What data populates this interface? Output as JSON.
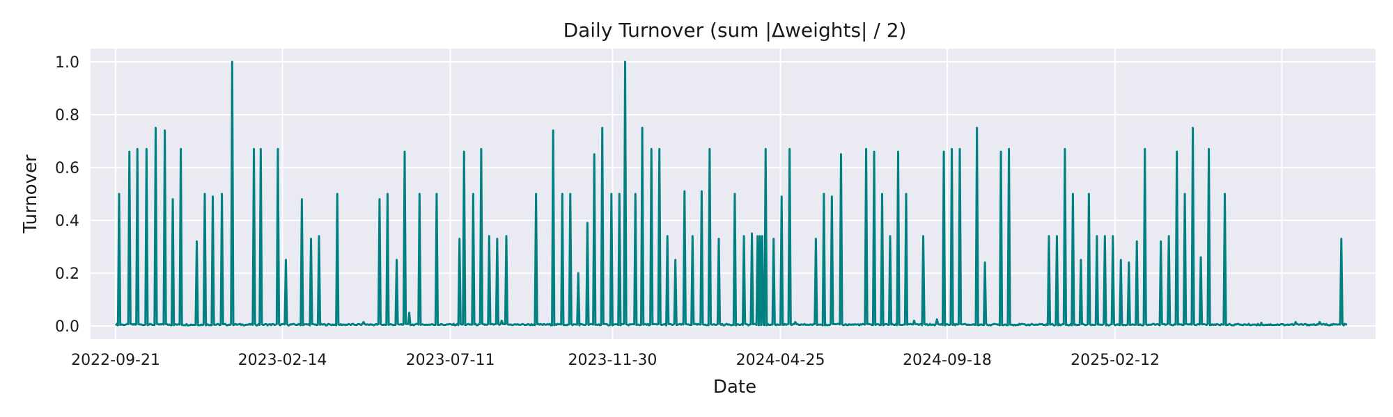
{
  "chart_data": {
    "type": "line",
    "title": "Daily Turnover (sum |Δweights| / 2)",
    "xlabel": "Date",
    "ylabel": "Turnover",
    "x_axis": "date",
    "xlim": [
      "2022-08-30",
      "2025-09-28"
    ],
    "ylim": [
      -0.05,
      1.05
    ],
    "x_ticks": [
      "2022-09-21",
      "2023-02-14",
      "2023-07-11",
      "2023-11-30",
      "2024-04-25",
      "2024-09-18",
      "2025-02-12"
    ],
    "y_ticks": [
      "0.0",
      "0.2",
      "0.4",
      "0.6",
      "0.8",
      "1.0"
    ],
    "grid": true,
    "legend": false,
    "colors": {
      "line": "#008080",
      "plot_bg": "#eaeaf2",
      "grid": "#ffffff"
    },
    "series": [
      {
        "baseline": 0.005,
        "date_start": "2022-09-21",
        "date_end": "2025-09-03",
        "spikes": [
          [
            "2022-09-24",
            0.5
          ],
          [
            "2022-10-03",
            0.66
          ],
          [
            "2022-10-10",
            0.67
          ],
          [
            "2022-10-18",
            0.67
          ],
          [
            "2022-10-26",
            0.75
          ],
          [
            "2022-11-03",
            0.74
          ],
          [
            "2022-11-10",
            0.48
          ],
          [
            "2022-11-17",
            0.67
          ],
          [
            "2022-12-01",
            0.32
          ],
          [
            "2022-12-08",
            0.5
          ],
          [
            "2022-12-15",
            0.49
          ],
          [
            "2022-12-23",
            0.5
          ],
          [
            "2023-01-01",
            1.0
          ],
          [
            "2023-01-20",
            0.67
          ],
          [
            "2023-01-26",
            0.67
          ],
          [
            "2023-02-10",
            0.67
          ],
          [
            "2023-02-17",
            0.25
          ],
          [
            "2023-03-03",
            0.48
          ],
          [
            "2023-03-11",
            0.33
          ],
          [
            "2023-03-18",
            0.34
          ],
          [
            "2023-04-03",
            0.5
          ],
          [
            "2023-05-10",
            0.48
          ],
          [
            "2023-05-17",
            0.5
          ],
          [
            "2023-05-25",
            0.25
          ],
          [
            "2023-06-01",
            0.66
          ],
          [
            "2023-06-14",
            0.5
          ],
          [
            "2023-06-29",
            0.5
          ],
          [
            "2023-07-19",
            0.33
          ],
          [
            "2023-07-23",
            0.66
          ],
          [
            "2023-07-31",
            0.5
          ],
          [
            "2023-08-07",
            0.67
          ],
          [
            "2023-08-14",
            0.34
          ],
          [
            "2023-08-21",
            0.33
          ],
          [
            "2023-08-29",
            0.34
          ],
          [
            "2023-09-24",
            0.5
          ],
          [
            "2023-10-09",
            0.74
          ],
          [
            "2023-10-17",
            0.5
          ],
          [
            "2023-10-24",
            0.5
          ],
          [
            "2023-10-31",
            0.2
          ],
          [
            "2023-11-08",
            0.39
          ],
          [
            "2023-11-14",
            0.65
          ],
          [
            "2023-11-21",
            0.75
          ],
          [
            "2023-11-29",
            0.5
          ],
          [
            "2023-12-06",
            0.5
          ],
          [
            "2023-12-11",
            1.0
          ],
          [
            "2023-12-20",
            0.5
          ],
          [
            "2023-12-26",
            0.75
          ],
          [
            "2024-01-03",
            0.67
          ],
          [
            "2024-01-10",
            0.67
          ],
          [
            "2024-01-17",
            0.34
          ],
          [
            "2024-01-24",
            0.25
          ],
          [
            "2024-02-01",
            0.51
          ],
          [
            "2024-02-08",
            0.34
          ],
          [
            "2024-02-16",
            0.51
          ],
          [
            "2024-02-23",
            0.67
          ],
          [
            "2024-03-02",
            0.33
          ],
          [
            "2024-03-16",
            0.5
          ],
          [
            "2024-03-24",
            0.34
          ],
          [
            "2024-03-31",
            0.35
          ],
          [
            "2024-04-07",
            0.34
          ],
          [
            "2024-04-07",
            0.34
          ],
          [
            "2024-04-09",
            0.34
          ],
          [
            "2024-04-05",
            0.34
          ],
          [
            "2024-04-12",
            0.67
          ],
          [
            "2024-04-19",
            0.33
          ],
          [
            "2024-04-26",
            0.49
          ],
          [
            "2024-05-03",
            0.67
          ],
          [
            "2024-05-26",
            0.33
          ],
          [
            "2024-06-02",
            0.5
          ],
          [
            "2024-06-09",
            0.49
          ],
          [
            "2024-06-17",
            0.65
          ],
          [
            "2024-07-09",
            0.67
          ],
          [
            "2024-07-16",
            0.66
          ],
          [
            "2024-07-23",
            0.5
          ],
          [
            "2024-07-30",
            0.34
          ],
          [
            "2024-08-06",
            0.66
          ],
          [
            "2024-08-13",
            0.5
          ],
          [
            "2024-08-28",
            0.34
          ],
          [
            "2024-09-15",
            0.66
          ],
          [
            "2024-09-22",
            0.67
          ],
          [
            "2024-09-29",
            0.67
          ],
          [
            "2024-10-14",
            0.75
          ],
          [
            "2024-10-21",
            0.24
          ],
          [
            "2024-11-04",
            0.66
          ],
          [
            "2024-11-11",
            0.67
          ],
          [
            "2024-12-16",
            0.34
          ],
          [
            "2024-12-23",
            0.34
          ],
          [
            "2024-12-30",
            0.67
          ],
          [
            "2025-01-06",
            0.5
          ],
          [
            "2025-01-13",
            0.25
          ],
          [
            "2025-01-20",
            0.5
          ],
          [
            "2025-01-27",
            0.34
          ],
          [
            "2025-02-03",
            0.34
          ],
          [
            "2025-02-10",
            0.34
          ],
          [
            "2025-02-17",
            0.25
          ],
          [
            "2025-02-24",
            0.24
          ],
          [
            "2025-03-03",
            0.32
          ],
          [
            "2025-03-10",
            0.67
          ],
          [
            "2025-03-24",
            0.32
          ],
          [
            "2025-03-31",
            0.34
          ],
          [
            "2025-04-07",
            0.66
          ],
          [
            "2025-04-14",
            0.5
          ],
          [
            "2025-04-21",
            0.75
          ],
          [
            "2025-04-28",
            0.26
          ],
          [
            "2025-05-05",
            0.67
          ],
          [
            "2025-05-19",
            0.5
          ],
          [
            "2025-08-29",
            0.33
          ]
        ],
        "small_bumps": [
          [
            "2023-04-26",
            0.015
          ],
          [
            "2023-06-05",
            0.05
          ],
          [
            "2023-08-25",
            0.02
          ],
          [
            "2024-05-08",
            0.015
          ],
          [
            "2024-08-20",
            0.02
          ],
          [
            "2024-09-09",
            0.025
          ],
          [
            "2025-06-20",
            0.012
          ],
          [
            "2025-07-20",
            0.015
          ],
          [
            "2025-08-10",
            0.015
          ]
        ]
      }
    ]
  }
}
